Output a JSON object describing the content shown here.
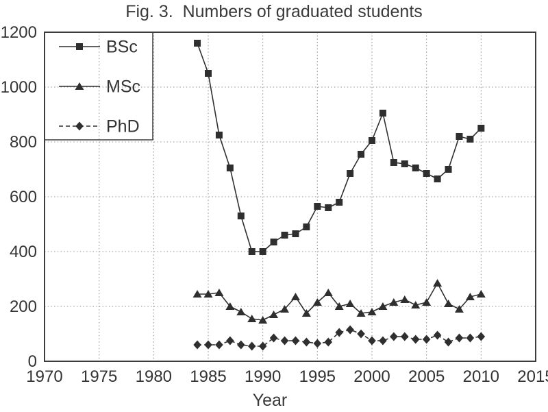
{
  "figure": {
    "title": "Fig. 3.  Numbers of graduated students",
    "x_axis_label": "Year"
  },
  "chart_data": {
    "type": "line",
    "title": "Fig. 3.  Numbers of graduated students",
    "xlabel": "Year",
    "ylabel": "",
    "xlim": [
      1970,
      2015
    ],
    "ylim": [
      0,
      1200
    ],
    "x_ticks": [
      1970,
      1975,
      1980,
      1985,
      1990,
      1995,
      2000,
      2005,
      2010,
      2015
    ],
    "y_ticks": [
      0,
      200,
      400,
      600,
      800,
      1000,
      1200
    ],
    "grid": true,
    "grid_style": "dotted",
    "legend_position": "top-left",
    "x": [
      1984,
      1985,
      1986,
      1987,
      1988,
      1989,
      1990,
      1991,
      1992,
      1993,
      1994,
      1995,
      1996,
      1997,
      1998,
      1999,
      2000,
      2001,
      2002,
      2003,
      2004,
      2005,
      2006,
      2007,
      2008,
      2009,
      2010
    ],
    "series": [
      {
        "name": "BSc",
        "marker": "square",
        "line": "solid",
        "values": [
          1160,
          1050,
          825,
          705,
          530,
          400,
          400,
          435,
          460,
          465,
          490,
          565,
          560,
          580,
          685,
          755,
          805,
          905,
          725,
          720,
          705,
          685,
          665,
          700,
          820,
          810,
          850
        ]
      },
      {
        "name": "MSc",
        "marker": "triangle",
        "line": "solid",
        "values": [
          245,
          245,
          250,
          200,
          180,
          155,
          150,
          170,
          190,
          235,
          175,
          215,
          250,
          200,
          210,
          175,
          180,
          200,
          215,
          225,
          205,
          215,
          285,
          210,
          190,
          235,
          245
        ]
      },
      {
        "name": "PhD",
        "marker": "diamond",
        "line": "dashed",
        "values": [
          60,
          60,
          60,
          75,
          60,
          55,
          55,
          85,
          75,
          75,
          70,
          65,
          70,
          105,
          115,
          100,
          75,
          75,
          90,
          90,
          80,
          80,
          95,
          70,
          85,
          85,
          90
        ]
      }
    ],
    "colors": {
      "series": "#2f2f2f",
      "frame": "#3c3c3c",
      "grid": "#8f8f8f",
      "text": "#333333",
      "background": "#ffffff"
    }
  }
}
